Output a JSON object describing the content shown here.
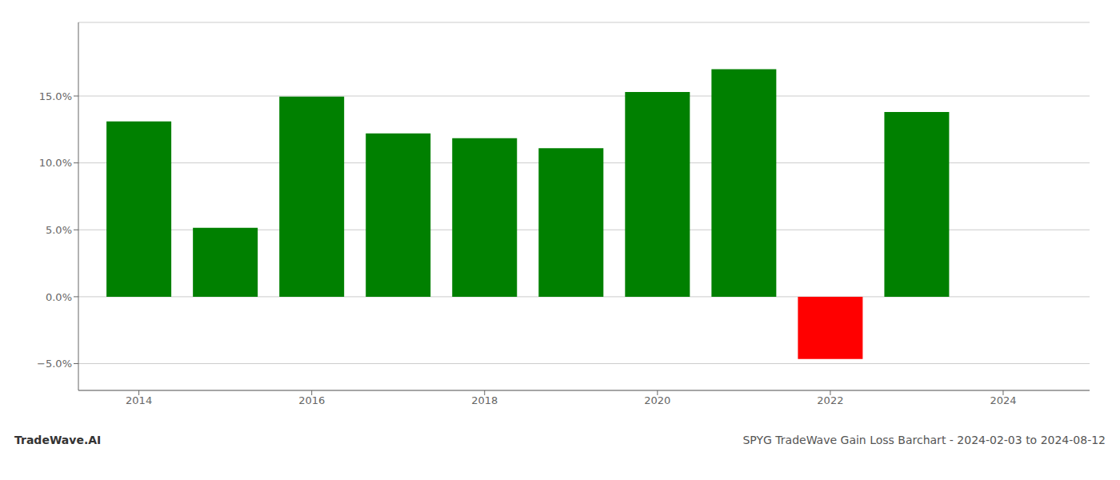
{
  "chart_data": {
    "type": "bar",
    "title": "SPYG TradeWave Gain Loss Barchart - 2024-02-03 to 2024-08-12",
    "annotations": [
      "TradeWave.AI"
    ],
    "x": [
      2014,
      2015,
      2016,
      2017,
      2018,
      2019,
      2020,
      2021,
      2022,
      2023
    ],
    "values": [
      13.1,
      5.15,
      14.95,
      12.2,
      11.85,
      11.1,
      15.3,
      17.0,
      -4.65,
      13.8
    ],
    "colors": [
      "#008000",
      "#008000",
      "#008000",
      "#008000",
      "#008000",
      "#008000",
      "#008000",
      "#008000",
      "#ff0000",
      "#008000"
    ],
    "xlim": [
      2013.3,
      2025.0
    ],
    "xticks": [
      2014,
      2016,
      2018,
      2020,
      2022,
      2024
    ],
    "ylim": [
      -7.0,
      20.5
    ],
    "yticks": [
      {
        "value": -5.0,
        "label": "−5.0%"
      },
      {
        "value": 0.0,
        "label": "0.0%"
      },
      {
        "value": 5.0,
        "label": "5.0%"
      },
      {
        "value": 10.0,
        "label": "10.0%"
      },
      {
        "value": 15.0,
        "label": "15.0%"
      }
    ],
    "grid": true
  }
}
